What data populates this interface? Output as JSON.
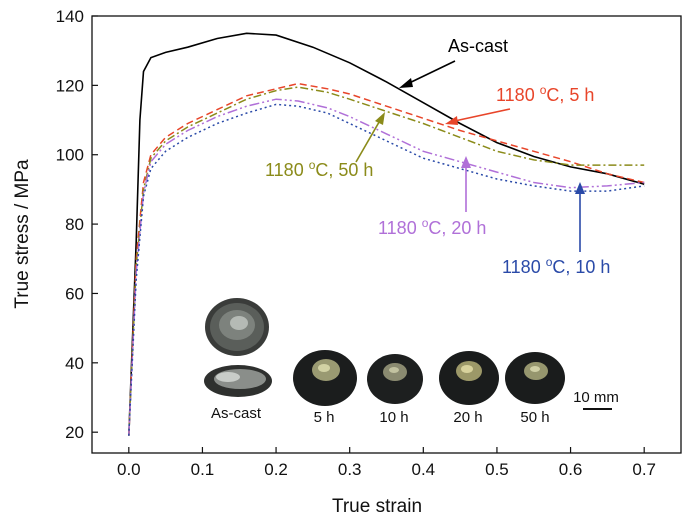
{
  "chart_data": {
    "type": "line",
    "xlabel": "True strain",
    "ylabel": "True stress / MPa",
    "xlim": [
      -0.05,
      0.75
    ],
    "ylim": [
      14,
      140
    ],
    "xticks": [
      "0.0",
      "0.1",
      "0.2",
      "0.3",
      "0.4",
      "0.5",
      "0.6",
      "0.7"
    ],
    "yticks": [
      "20",
      "40",
      "60",
      "80",
      "100",
      "120",
      "140"
    ],
    "grid": false,
    "series": [
      {
        "name": "As-cast",
        "color": "#000000",
        "dash": "solid",
        "points": [
          [
            0.0,
            19
          ],
          [
            0.01,
            75
          ],
          [
            0.015,
            110
          ],
          [
            0.02,
            124
          ],
          [
            0.03,
            128
          ],
          [
            0.05,
            129.5
          ],
          [
            0.08,
            131
          ],
          [
            0.12,
            133.5
          ],
          [
            0.16,
            135
          ],
          [
            0.2,
            134.5
          ],
          [
            0.25,
            131
          ],
          [
            0.3,
            126.5
          ],
          [
            0.35,
            121
          ],
          [
            0.4,
            115
          ],
          [
            0.45,
            109
          ],
          [
            0.5,
            103.5
          ],
          [
            0.55,
            99.5
          ],
          [
            0.6,
            96.5
          ],
          [
            0.65,
            94.5
          ],
          [
            0.7,
            91.5
          ]
        ]
      },
      {
        "name": "1180 oC, 5 h",
        "color": "#e8452a",
        "dash": "7,4",
        "points": [
          [
            0.0,
            19
          ],
          [
            0.01,
            70
          ],
          [
            0.02,
            92
          ],
          [
            0.03,
            100
          ],
          [
            0.05,
            105
          ],
          [
            0.08,
            109
          ],
          [
            0.12,
            113
          ],
          [
            0.16,
            117
          ],
          [
            0.2,
            119
          ],
          [
            0.23,
            120.5
          ],
          [
            0.27,
            119
          ],
          [
            0.3,
            117.5
          ],
          [
            0.35,
            114
          ],
          [
            0.4,
            110.5
          ],
          [
            0.45,
            107
          ],
          [
            0.5,
            104
          ],
          [
            0.55,
            101
          ],
          [
            0.6,
            98
          ],
          [
            0.65,
            94.5
          ],
          [
            0.7,
            92
          ]
        ]
      },
      {
        "name": "1180 oC, 50 h",
        "color": "#8b8b1a",
        "dash": "8,3,2,3",
        "points": [
          [
            0.0,
            19
          ],
          [
            0.01,
            68
          ],
          [
            0.02,
            90
          ],
          [
            0.03,
            99
          ],
          [
            0.05,
            104
          ],
          [
            0.08,
            108
          ],
          [
            0.12,
            112
          ],
          [
            0.16,
            116
          ],
          [
            0.2,
            118.5
          ],
          [
            0.23,
            119.5
          ],
          [
            0.27,
            118
          ],
          [
            0.3,
            116
          ],
          [
            0.35,
            112.5
          ],
          [
            0.4,
            109
          ],
          [
            0.45,
            105
          ],
          [
            0.5,
            101
          ],
          [
            0.55,
            98.5
          ],
          [
            0.6,
            97
          ],
          [
            0.65,
            97
          ],
          [
            0.7,
            97
          ]
        ]
      },
      {
        "name": "1180 oC, 20 h",
        "color": "#b070d8",
        "dash": "10,3,2,3,2,3",
        "points": [
          [
            0.0,
            19
          ],
          [
            0.01,
            66
          ],
          [
            0.02,
            89
          ],
          [
            0.03,
            98
          ],
          [
            0.05,
            103
          ],
          [
            0.08,
            107
          ],
          [
            0.12,
            111
          ],
          [
            0.16,
            114
          ],
          [
            0.2,
            116
          ],
          [
            0.23,
            115.5
          ],
          [
            0.27,
            113.5
          ],
          [
            0.3,
            111
          ],
          [
            0.35,
            106
          ],
          [
            0.4,
            101
          ],
          [
            0.45,
            98
          ],
          [
            0.5,
            95
          ],
          [
            0.55,
            92
          ],
          [
            0.6,
            90.5
          ],
          [
            0.65,
            91
          ],
          [
            0.7,
            92
          ]
        ]
      },
      {
        "name": "1180 oC, 10 h",
        "color": "#2a4aa8",
        "dash": "2,3",
        "points": [
          [
            0.0,
            19
          ],
          [
            0.01,
            64
          ],
          [
            0.02,
            88
          ],
          [
            0.03,
            96
          ],
          [
            0.05,
            101
          ],
          [
            0.08,
            105
          ],
          [
            0.12,
            109
          ],
          [
            0.16,
            112
          ],
          [
            0.2,
            114.5
          ],
          [
            0.23,
            114
          ],
          [
            0.27,
            112
          ],
          [
            0.3,
            109
          ],
          [
            0.35,
            104
          ],
          [
            0.4,
            99
          ],
          [
            0.45,
            96
          ],
          [
            0.5,
            93
          ],
          [
            0.55,
            91
          ],
          [
            0.6,
            89.5
          ],
          [
            0.65,
            89.5
          ],
          [
            0.7,
            91
          ]
        ]
      }
    ],
    "annotations": [
      {
        "id": "ann-ascast",
        "text": "As-cast",
        "color": "#000000"
      },
      {
        "id": "ann-5h",
        "text": "1180 ",
        "sup": "o",
        "tail": "C, 5 h",
        "color": "#e8452a"
      },
      {
        "id": "ann-50h",
        "text": "1180 ",
        "sup": "o",
        "tail": "C, 50 h",
        "color": "#8b8b1a"
      },
      {
        "id": "ann-20h",
        "text": "1180 ",
        "sup": "o",
        "tail": "C, 20 h",
        "color": "#b070d8"
      },
      {
        "id": "ann-10h",
        "text": "1180 ",
        "sup": "o",
        "tail": "C, 10 h",
        "color": "#2a4aa8"
      }
    ]
  },
  "inset": {
    "labels": [
      "As-cast",
      "5 h",
      "10 h",
      "20 h",
      "50 h"
    ],
    "scale_bar": "10 mm"
  }
}
